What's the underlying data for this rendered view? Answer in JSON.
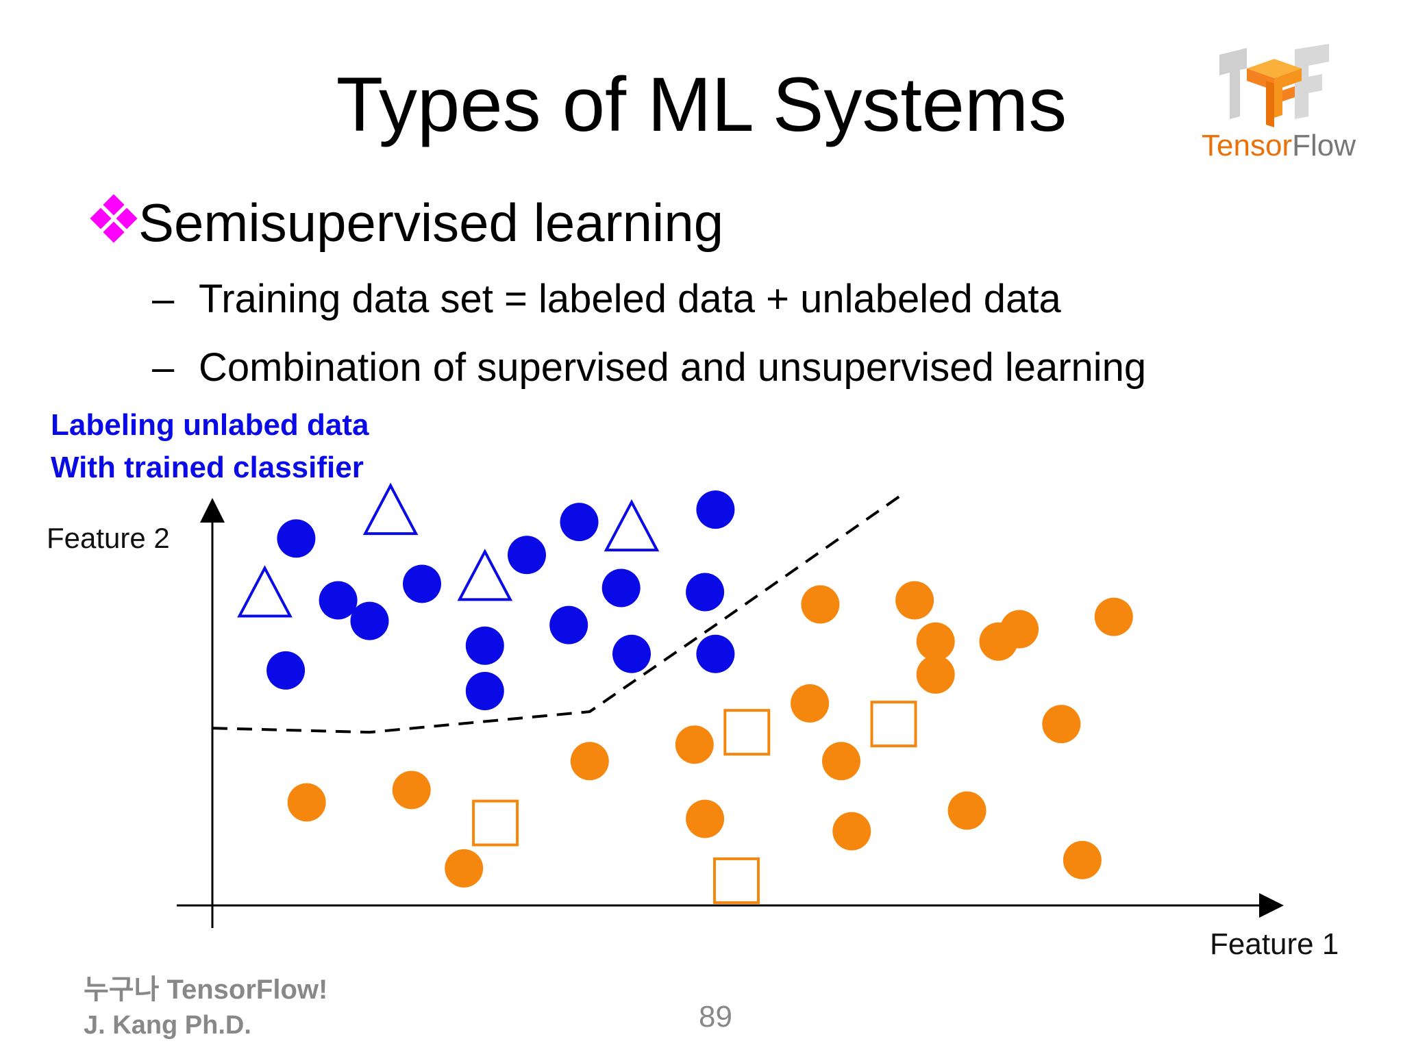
{
  "slide": {
    "title": "Types of ML Systems",
    "bullet": "Semisupervised learning",
    "sub_points": [
      "Training data set = labeled data  + unlabeled data",
      "Combination of supervised and unsupervised learning"
    ],
    "dash": "–",
    "annotation_line1": "Labeling unlabed data",
    "annotation_line2": "With trained classifier",
    "feature2_label": "Feature 2",
    "feature1_label": "Feature 1",
    "footer_line1": "누구나 TensorFlow!",
    "footer_line2": "J. Kang Ph.D.",
    "page_number": "89",
    "logo_text_bold": "Tensor",
    "logo_text_light": "Flow"
  },
  "colors": {
    "class_a": "#0a0ae6",
    "class_b": "#f5870f",
    "bullet": "#ff00ff",
    "boundary": "#000000",
    "footer": "#888888"
  },
  "icons": [
    "diamond-bullet-icon",
    "tensorflow-logo"
  ],
  "chart_data": {
    "type": "scatter",
    "x_axis_label": "Feature 1",
    "y_axis_label": "Feature 2",
    "xlim": [
      0,
      100
    ],
    "ylim": [
      0,
      100
    ],
    "series": [
      {
        "marker": "circle-filled",
        "color": "#0a0ae6",
        "points": [
          [
            8,
            89
          ],
          [
            7,
            57
          ],
          [
            12,
            74
          ],
          [
            15,
            69
          ],
          [
            20,
            78
          ],
          [
            26,
            63
          ],
          [
            26,
            52
          ],
          [
            30,
            85
          ],
          [
            34,
            68
          ],
          [
            35,
            93
          ],
          [
            39,
            77
          ],
          [
            40,
            61
          ],
          [
            47,
            76
          ],
          [
            48,
            96
          ],
          [
            48,
            61
          ]
        ]
      },
      {
        "marker": "triangle-outline",
        "color": "#0a0ae6",
        "points": [
          [
            5,
            76
          ],
          [
            17,
            96
          ],
          [
            26,
            80
          ],
          [
            40,
            92
          ]
        ]
      },
      {
        "marker": "circle-filled",
        "color": "#f5870f",
        "points": [
          [
            9,
            25
          ],
          [
            19,
            28
          ],
          [
            24,
            9
          ],
          [
            36,
            35
          ],
          [
            46,
            39
          ],
          [
            47,
            21
          ],
          [
            58,
            73
          ],
          [
            57,
            49
          ],
          [
            60,
            35
          ],
          [
            61,
            18
          ],
          [
            67,
            74
          ],
          [
            69,
            64
          ],
          [
            69,
            56
          ],
          [
            72,
            23
          ],
          [
            77,
            67
          ],
          [
            75,
            64
          ],
          [
            81,
            44
          ],
          [
            86,
            70
          ],
          [
            83,
            11
          ]
        ]
      },
      {
        "marker": "square-outline",
        "color": "#f5870f",
        "points": [
          [
            27,
            20
          ],
          [
            51,
            42
          ],
          [
            50,
            6
          ],
          [
            65,
            44
          ]
        ]
      }
    ],
    "decision_boundary": {
      "style": "dashed",
      "points": [
        [
          0,
          43
        ],
        [
          15,
          42
        ],
        [
          36,
          47
        ],
        [
          48,
          68
        ],
        [
          66,
          100
        ]
      ]
    }
  }
}
